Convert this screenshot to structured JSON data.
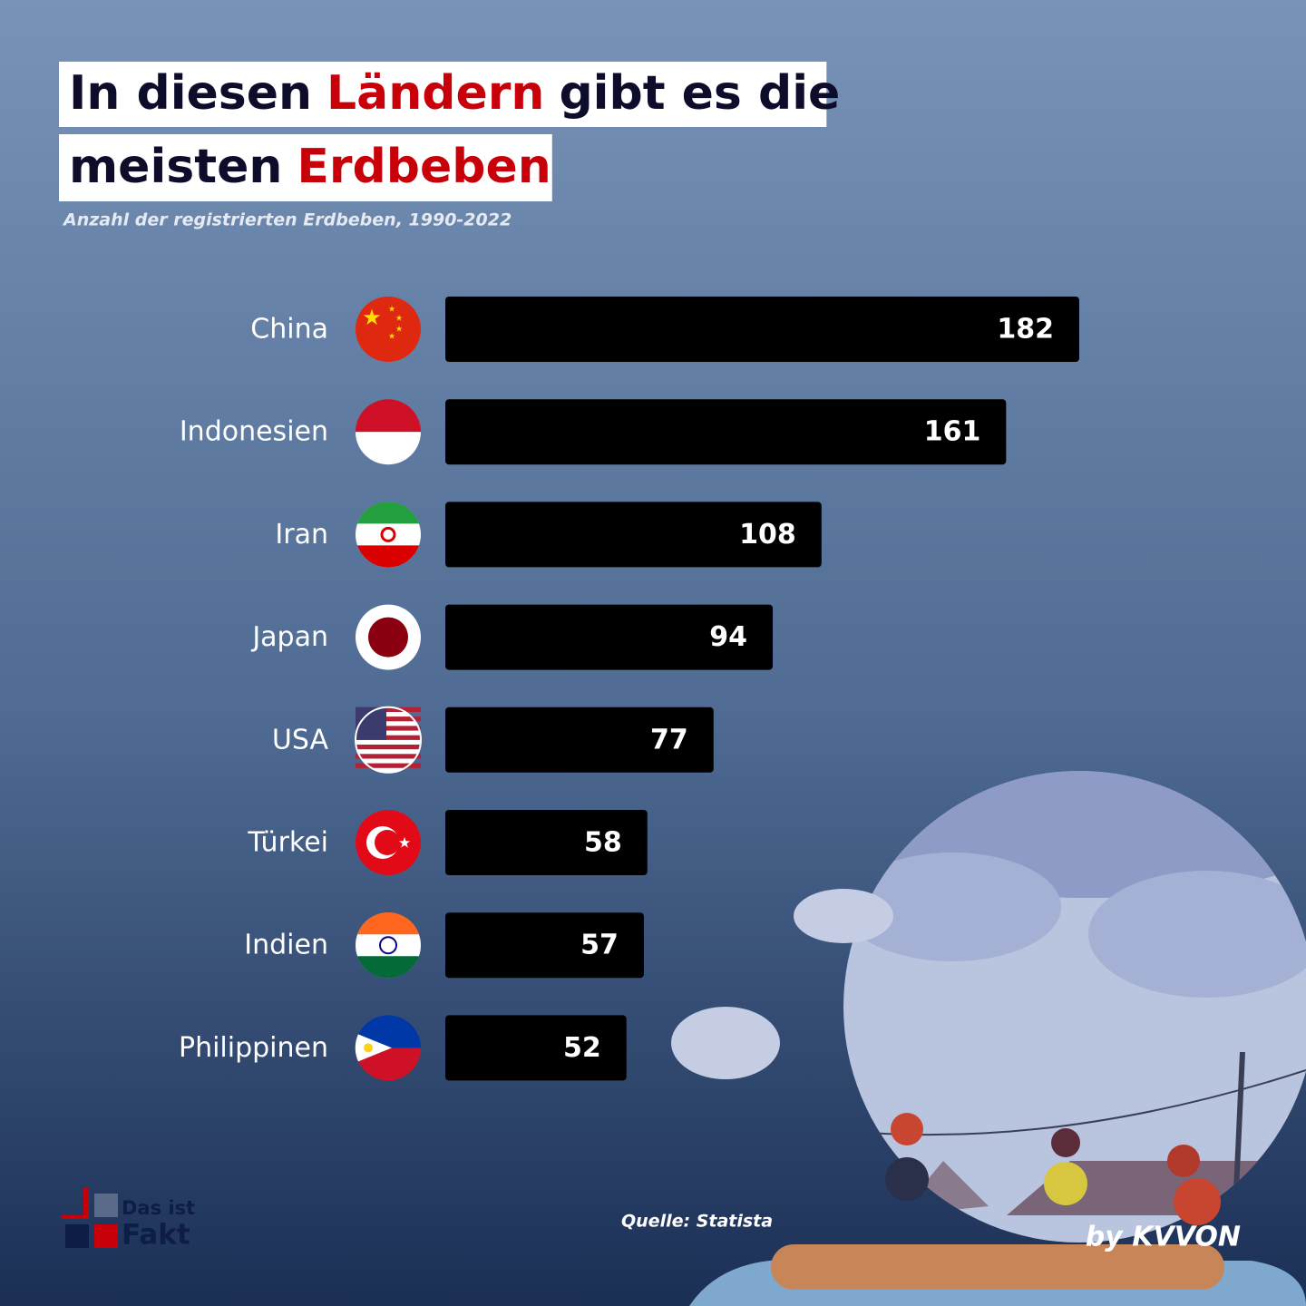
{
  "chart_data": {
    "type": "bar",
    "title_lines": [
      [
        {
          "text": "In diesen",
          "color": "#0d0d2b"
        },
        {
          "text": "Ländern",
          "color": "#c8000a"
        },
        {
          "text": "gibt es die",
          "color": "#0d0d2b"
        }
      ],
      [
        {
          "text": "meisten",
          "color": "#0d0d2b"
        },
        {
          "text": "Erdbeben",
          "color": "#c8000a"
        }
      ]
    ],
    "subtitle": "Anzahl der registrierten Erdbeben, 1990-2022",
    "categories": [
      "China",
      "Indonesien",
      "Iran",
      "Japan",
      "USA",
      "Türkei",
      "Indien",
      "Philippinen"
    ],
    "values": [
      182,
      161,
      108,
      94,
      77,
      58,
      57,
      52
    ],
    "color": "#000000",
    "source": "Quelle: Statista"
  },
  "logo": {
    "line1": "Das ist",
    "line2": "Fakt"
  },
  "credit": "by KVVON"
}
